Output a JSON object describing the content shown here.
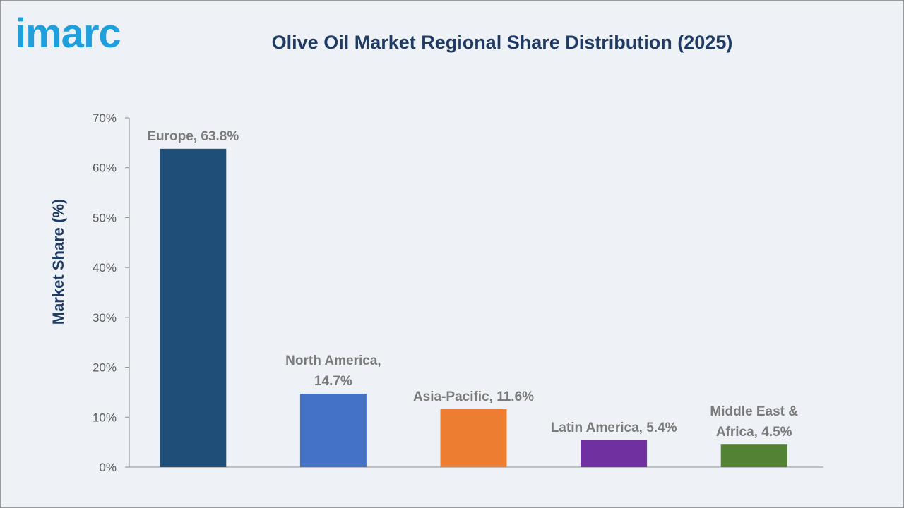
{
  "brand": {
    "logo_text": "imarc",
    "logo_color": "#1fa0dc"
  },
  "chart_data": {
    "type": "bar",
    "title": "Olive Oil Market Regional Share Distribution (2025)",
    "xlabel": "",
    "ylabel": "Market Share (%)",
    "ylim": [
      0,
      70
    ],
    "yticks": [
      "0%",
      "10%",
      "20%",
      "30%",
      "40%",
      "50%",
      "60%",
      "70%"
    ],
    "grid": false,
    "categories": [
      "Europe",
      "North America",
      "Asia-Pacific",
      "Latin America",
      "Middle East & Africa"
    ],
    "values": [
      63.8,
      14.7,
      11.6,
      5.4,
      4.5
    ],
    "data_labels": [
      [
        "Europe, 63.8%"
      ],
      [
        "North America,",
        "14.7%"
      ],
      [
        "Asia-Pacific, 11.6%"
      ],
      [
        "Latin America, 5.4%"
      ],
      [
        "Middle East &",
        "Africa, 4.5%"
      ]
    ],
    "colors": [
      "#1f4e79",
      "#4472c4",
      "#ed7d31",
      "#7030a0",
      "#548235"
    ]
  }
}
